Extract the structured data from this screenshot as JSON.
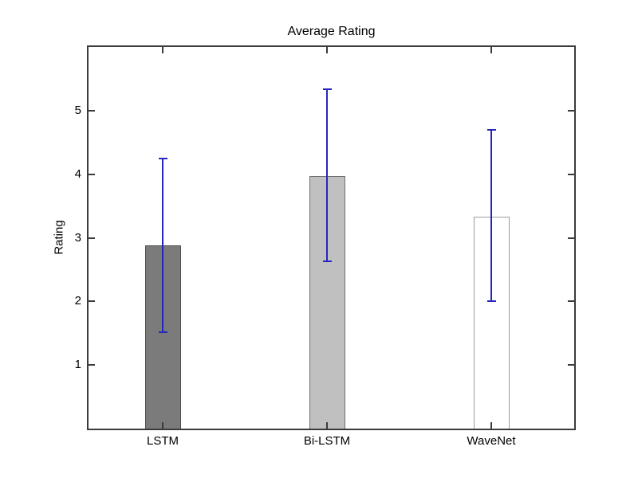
{
  "chart_data": {
    "type": "bar",
    "title": "Average Rating",
    "xlabel": "",
    "ylabel": "Rating",
    "categories": [
      "LSTM",
      "Bi-LSTM",
      "WaveNet"
    ],
    "values": [
      2.88,
      3.97,
      3.33
    ],
    "error_low": [
      1.52,
      2.63,
      2.0
    ],
    "error_high": [
      4.25,
      5.34,
      4.7
    ],
    "ylim": [
      0,
      6
    ],
    "yticks": [
      1,
      2,
      3,
      4,
      5
    ],
    "grid": false,
    "legend": "none",
    "box": "on",
    "bar_fill_colors": [
      "#7b7b7b",
      "#c0c0c0",
      "#ffffff"
    ],
    "bar_edge_colors": [
      "#4d4d4d",
      "#6e6e6e",
      "#9c9c9c"
    ],
    "errorbar_color": "#2626be",
    "axis_color": "#3b3b3b",
    "background_color": "#ffffff"
  }
}
